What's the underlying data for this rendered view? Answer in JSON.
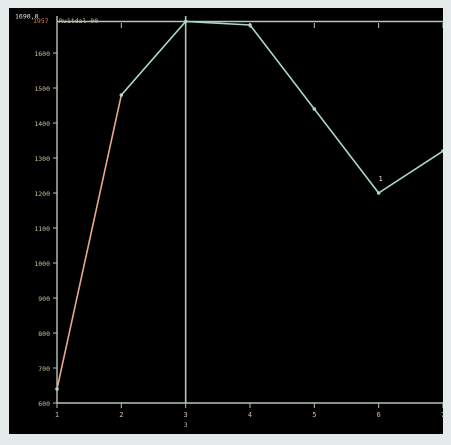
{
  "chart_data": {
    "type": "line",
    "title": "",
    "xlabel": "",
    "ylabel": "",
    "x": [
      1,
      2,
      3,
      4,
      5,
      6,
      7
    ],
    "series": [
      {
        "name": "",
        "values": [
          640,
          1480,
          1690,
          1680,
          1440,
          1200,
          1320
        ],
        "color": "#a7d8cc"
      }
    ],
    "first_segment_color": "#e8a98a",
    "xlim": [
      1,
      7
    ],
    "ylim": [
      600,
      1700
    ],
    "y_ticks": [
      "600",
      "700",
      "800",
      "900",
      "1000",
      "1100",
      "1200",
      "1300",
      "1400",
      "1500",
      "1600"
    ],
    "x_ticks": [
      "1",
      "2",
      "3",
      "4",
      "5",
      "6",
      "7"
    ],
    "reference_line": {
      "value": 1690,
      "label": "1690,0"
    },
    "cursor": {
      "x": 3,
      "label": "3"
    },
    "point_marker": {
      "x": 6,
      "label": "1"
    },
    "header_text": {
      "value": "1957",
      "label": "Ru1tdal 00"
    },
    "colors": {
      "background": "#000000",
      "frame": "#b8c4b8",
      "axis_text": "#c8c09a",
      "header_value": "#e07a5f"
    }
  }
}
